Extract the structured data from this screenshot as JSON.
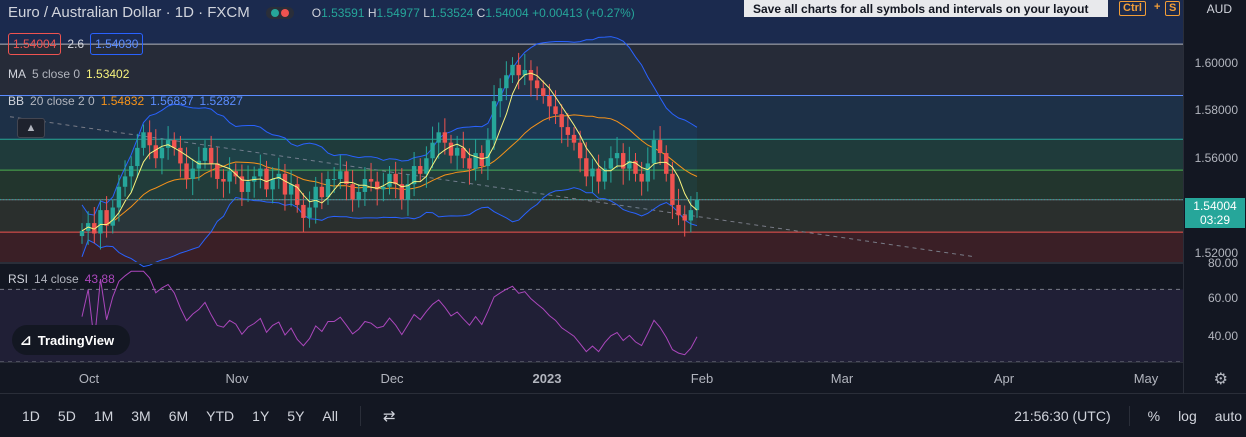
{
  "header": {
    "title": "Euro / Australian Dollar · 1D · FXCM",
    "ohlc": {
      "o_label": "O",
      "o": "1.53591",
      "h_label": "H",
      "h": "1.54977",
      "l_label": "L",
      "l": "1.53524",
      "c_label": "C",
      "c": "1.54004",
      "change": "+0.00413 (+0.27%)"
    },
    "sell": "1.54004",
    "spread": "2.6",
    "buy": "1.54030"
  },
  "tooltip": {
    "text": "Save all charts for all symbols and intervals on your layout",
    "kbd_ctrl": "Ctrl",
    "kbd_plus": "+",
    "kbd_s": "S"
  },
  "currency": "AUD",
  "indicators": {
    "ma": {
      "label": "MA",
      "params": "5 close 0",
      "value": "1.53402"
    },
    "bb": {
      "label": "BB",
      "params": "20 close 2 0",
      "basis": "1.54832",
      "upper": "1.56837",
      "lower": "1.52827"
    },
    "rsi": {
      "label": "RSI",
      "params": "14 close",
      "value": "43.88"
    }
  },
  "logo": "TradingView",
  "price_tag": {
    "value": "1.54004",
    "countdown": "03:29"
  },
  "bottom": {
    "timeframes": [
      "1D",
      "5D",
      "1M",
      "3M",
      "6M",
      "YTD",
      "1Y",
      "5Y",
      "All"
    ],
    "time": "21:56:30 (UTC)",
    "percent": "%",
    "log": "log",
    "auto": "auto"
  },
  "colors": {
    "up": "#26a69a",
    "down": "#ef5350",
    "bb": "#2962ff",
    "ma": "#f7f37d",
    "basis": "#f7931a",
    "rsi": "#ab47bc"
  },
  "chart_data": {
    "type": "candlestick",
    "title": "Euro / Australian Dollar · 1D · FXCM",
    "y_axis": {
      "ticks": [
        1.52,
        1.54,
        1.56,
        1.58,
        1.6
      ],
      "labels": [
        "1.52000",
        "1.54000",
        "1.56000",
        "1.58000",
        "1.60000"
      ],
      "range": [
        1.516,
        1.617
      ]
    },
    "x_axis": {
      "labels": [
        "Oct",
        "Nov",
        "Dec",
        "2023",
        "Feb",
        "Mar",
        "Apr",
        "May"
      ]
    },
    "candles_close_approx": [
      1.528,
      1.531,
      1.527,
      1.536,
      1.53,
      1.537,
      1.545,
      1.549,
      1.553,
      1.56,
      1.566,
      1.561,
      1.556,
      1.56,
      1.563,
      1.56,
      1.554,
      1.548,
      1.552,
      1.555,
      1.56,
      1.554,
      1.548,
      1.547,
      1.551,
      1.549,
      1.543,
      1.547,
      1.549,
      1.552,
      1.544,
      1.548,
      1.55,
      1.542,
      1.546,
      1.538,
      1.533,
      1.537,
      1.545,
      1.541,
      1.548,
      1.548,
      1.551,
      1.546,
      1.54,
      1.543,
      1.548,
      1.547,
      1.544,
      1.545,
      1.55,
      1.546,
      1.54,
      1.546,
      1.553,
      1.55,
      1.556,
      1.562,
      1.566,
      1.562,
      1.557,
      1.56,
      1.556,
      1.552,
      1.558,
      1.553,
      1.563,
      1.578,
      1.583,
      1.588,
      1.592,
      1.588,
      1.59,
      1.586,
      1.583,
      1.58,
      1.576,
      1.573,
      1.568,
      1.565,
      1.562,
      1.556,
      1.549,
      1.552,
      1.547,
      1.552,
      1.556,
      1.558,
      1.552,
      1.555,
      1.55,
      1.547,
      1.554,
      1.563,
      1.558,
      1.55,
      1.538,
      1.534,
      1.532,
      1.536,
      1.54
    ],
    "horizontal_levels": [
      1.6,
      1.5802,
      1.5633,
      1.5514,
      1.54,
      1.5275
    ],
    "rsi": {
      "ticks": [
        40,
        60,
        80
      ],
      "labels": [
        "40.00",
        "60.00",
        "80.00"
      ],
      "range": [
        30,
        84
      ],
      "levels": [
        70,
        30
      ],
      "last": 43.88
    }
  }
}
